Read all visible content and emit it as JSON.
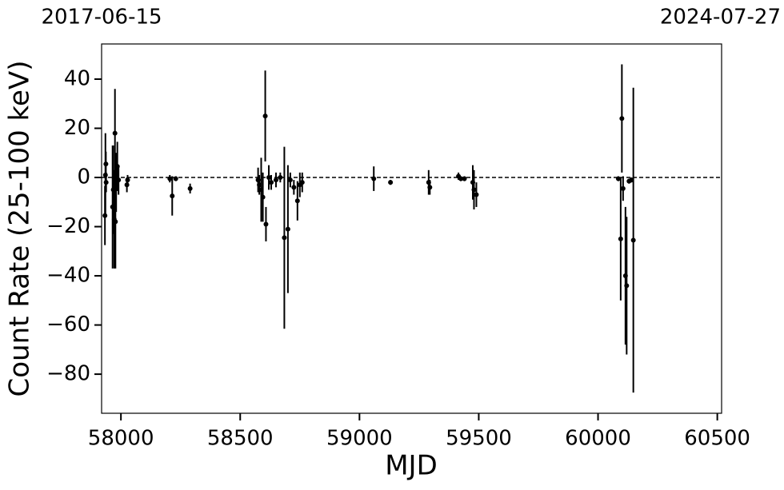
{
  "chart_data": {
    "type": "scatter",
    "xlabel": "MJD",
    "ylabel": "Count Rate (25-100 keV)",
    "xlim": [
      57919,
      60518
    ],
    "ylim": [
      -95.9,
      54.3
    ],
    "xticks": [
      58000,
      58500,
      59000,
      59500,
      60000,
      60500
    ],
    "yticks": [
      {
        "value": -80,
        "label": "−80"
      },
      {
        "value": -60,
        "label": "−60"
      },
      {
        "value": -40,
        "label": "−40"
      },
      {
        "value": -20,
        "label": "−20"
      },
      0,
      20,
      40
    ],
    "top_xticks": [
      {
        "value": 57919,
        "label": "2017-06-15"
      },
      {
        "value": 60518,
        "label": "2024-07-27"
      }
    ],
    "reference_line": 0,
    "color": "#000000",
    "x": [
      57933,
      57935,
      57937,
      57938,
      57965,
      57968,
      57972,
      57975,
      57977,
      57980,
      57985,
      57990,
      58025,
      58028,
      58205,
      58215,
      58230,
      58290,
      58575,
      58580,
      58588,
      58595,
      58605,
      58608,
      58620,
      58630,
      58650,
      58668,
      58685,
      58700,
      58710,
      58725,
      58740,
      58750,
      58760,
      59060,
      59130,
      59290,
      59295,
      59415,
      59425,
      59440,
      59475,
      59480,
      59490,
      60085,
      60095,
      60100,
      60105,
      60115,
      60120,
      60130,
      60140,
      60148
    ],
    "values": [
      -15.5,
      1,
      5.5,
      -2,
      -12,
      -5,
      -17,
      18,
      -18,
      -2,
      4.5,
      -1,
      -3,
      -1,
      -0.5,
      -7.5,
      -0.5,
      -4.5,
      -1,
      -3,
      -5,
      -8,
      25,
      -19,
      0,
      -2,
      -1,
      0,
      -24.5,
      -21,
      -1,
      -4,
      -9.5,
      -3,
      -2,
      -0.5,
      -2,
      -2,
      -4,
      0.5,
      -0.5,
      -0.5,
      -2,
      -5,
      -7,
      -0.5,
      -25,
      24,
      -4.5,
      -40,
      -44,
      -1.5,
      -1,
      -25.5
    ],
    "errors": [
      12,
      17,
      5,
      4,
      25,
      18,
      20,
      18,
      19,
      12,
      10,
      6,
      3,
      2,
      1.5,
      8,
      1,
      2,
      5,
      4,
      13,
      10,
      18.5,
      7,
      5,
      3,
      3,
      2,
      37,
      26,
      3,
      3,
      8,
      5,
      4,
      5,
      1,
      5,
      3,
      1.5,
      1,
      1,
      7,
      8,
      5,
      1,
      25,
      22,
      5,
      28,
      28,
      1,
      1,
      62
    ]
  }
}
